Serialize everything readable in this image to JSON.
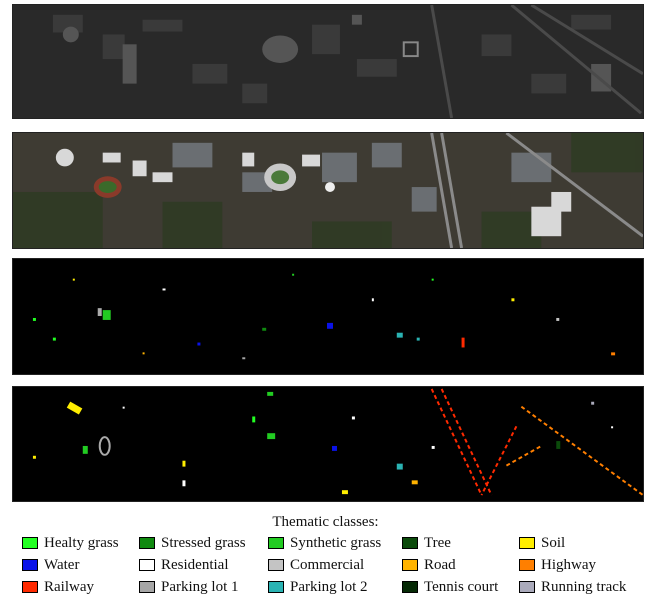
{
  "panels": [
    {
      "name": "grayscale-lidar-image"
    },
    {
      "name": "rgb-satellite-image"
    },
    {
      "name": "training-ground-truth-map"
    },
    {
      "name": "test-ground-truth-map"
    }
  ],
  "legend": {
    "title": "Thematic classes:",
    "classes": [
      {
        "label": "Healty grass",
        "color": "#22ff22"
      },
      {
        "label": "Stressed grass",
        "color": "#0f8a0f"
      },
      {
        "label": "Synthetic grass",
        "color": "#22cc22"
      },
      {
        "label": "Tree",
        "color": "#0b4a0b"
      },
      {
        "label": "Soil",
        "color": "#ffee00"
      },
      {
        "label": "Water",
        "color": "#0a12e8"
      },
      {
        "label": "Residential",
        "color": "#ffffff"
      },
      {
        "label": "Commercial",
        "color": "#c4c4c4"
      },
      {
        "label": "Road",
        "color": "#ffb300"
      },
      {
        "label": "Highway",
        "color": "#ff7f00"
      },
      {
        "label": "Railway",
        "color": "#ff2a00"
      },
      {
        "label": "Parking lot 1",
        "color": "#a6a6a6"
      },
      {
        "label": "Parking lot 2",
        "color": "#2ab3b3"
      },
      {
        "label": "Tennis court",
        "color": "#062a06"
      },
      {
        "label": "Running track",
        "color": "#aaaabb"
      }
    ]
  }
}
